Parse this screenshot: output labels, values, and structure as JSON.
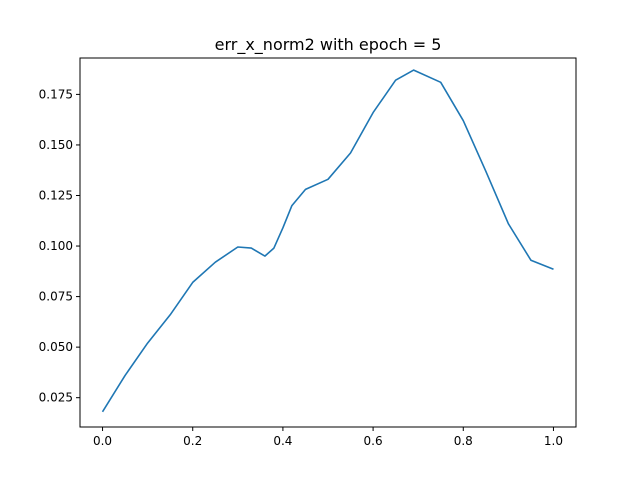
{
  "chart_data": {
    "type": "line",
    "title": "err_x_norm2 with epoch = 5",
    "xlabel": "",
    "ylabel": "",
    "xlim": [
      -0.05,
      1.05
    ],
    "ylim": [
      0.0105,
      0.193
    ],
    "xticks": [
      0.0,
      0.2,
      0.4,
      0.6,
      0.8,
      1.0
    ],
    "xtick_labels": [
      "0.0",
      "0.2",
      "0.4",
      "0.6",
      "0.8",
      "1.0"
    ],
    "yticks": [
      0.025,
      0.05,
      0.075,
      0.1,
      0.125,
      0.15,
      0.175
    ],
    "ytick_labels": [
      "0.025",
      "0.050",
      "0.075",
      "0.100",
      "0.125",
      "0.150",
      "0.175"
    ],
    "grid": false,
    "line_color": "#1f77b4",
    "series": [
      {
        "x": [
          0.0,
          0.05,
          0.1,
          0.15,
          0.2,
          0.25,
          0.3,
          0.33,
          0.36,
          0.38,
          0.4,
          0.42,
          0.45,
          0.5,
          0.55,
          0.6,
          0.65,
          0.69,
          0.75,
          0.8,
          0.85,
          0.9,
          0.95,
          1.0
        ],
        "values": [
          0.018,
          0.036,
          0.052,
          0.066,
          0.082,
          0.092,
          0.0995,
          0.099,
          0.095,
          0.099,
          0.109,
          0.12,
          0.128,
          0.133,
          0.146,
          0.166,
          0.182,
          0.187,
          0.181,
          0.162,
          0.137,
          0.111,
          0.093,
          0.0885
        ]
      }
    ]
  }
}
